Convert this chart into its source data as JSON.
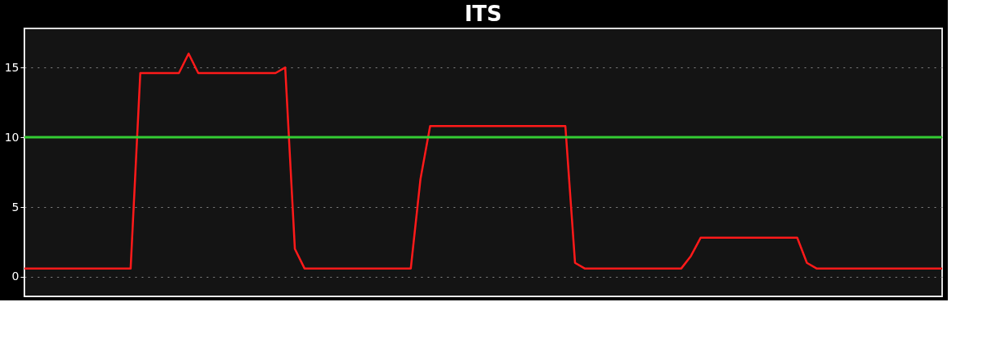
{
  "chart_data": {
    "type": "line",
    "title": "ITS",
    "categories": [
      null,
      null,
      null,
      null,
      null,
      null,
      null,
      null,
      null,
      null,
      null,
      null,
      null,
      null,
      null,
      null,
      null,
      null,
      null,
      null,
      null,
      null,
      null,
      null,
      null,
      null,
      null,
      null,
      null,
      null,
      null,
      null,
      null,
      null,
      null,
      null,
      null,
      null,
      null,
      null,
      null,
      null,
      null,
      null,
      null,
      null,
      null,
      null,
      null,
      null,
      null,
      null,
      null,
      null,
      null,
      null,
      null,
      null,
      null,
      null,
      null,
      null,
      null,
      null,
      null,
      null,
      null,
      null,
      null,
      null,
      null,
      null,
      null,
      null,
      null,
      null,
      null,
      null,
      null,
      null,
      null,
      null,
      null,
      null,
      null,
      null,
      null,
      null,
      null,
      null,
      null,
      null,
      null,
      null,
      null,
      null
    ],
    "series": [
      {
        "color": "#ff1a1a",
        "values": [
          0.6,
          0.6,
          0.6,
          0.6,
          0.6,
          0.6,
          0.6,
          0.6,
          0.6,
          0.6,
          0.6,
          0.6,
          14.6,
          14.6,
          14.6,
          14.6,
          14.6,
          16,
          14.6,
          14.6,
          14.6,
          14.6,
          14.6,
          14.6,
          14.6,
          14.6,
          14.6,
          15,
          2,
          0.6,
          0.6,
          0.6,
          0.6,
          0.6,
          0.6,
          0.6,
          0.6,
          0.6,
          0.6,
          0.6,
          0.6,
          7,
          10.8,
          10.8,
          10.8,
          10.8,
          10.8,
          10.8,
          10.8,
          10.8,
          10.8,
          10.8,
          10.8,
          10.8,
          10.8,
          10.8,
          10.8,
          1,
          0.6,
          0.6,
          0.6,
          0.6,
          0.6,
          0.6,
          0.6,
          0.6,
          0.6,
          0.6,
          0.6,
          1.5,
          2.8,
          2.8,
          2.8,
          2.8,
          2.8,
          2.8,
          2.8,
          2.8,
          2.8,
          2.8,
          2.8,
          1,
          0.6,
          0.6,
          0.6,
          0.6,
          0.6,
          0.6,
          0.6,
          0.6,
          0.6,
          0.6,
          0.6,
          0.6,
          0.6,
          0.6
        ]
      }
    ],
    "ylim": [
      -1.4,
      17.8
    ],
    "yticks": [
      0,
      5,
      10,
      15
    ],
    "grid": "y",
    "line_style": "solid",
    "ref_lines": [
      {
        "axis": "y",
        "value": 10,
        "color": "#33cc33"
      }
    ]
  }
}
